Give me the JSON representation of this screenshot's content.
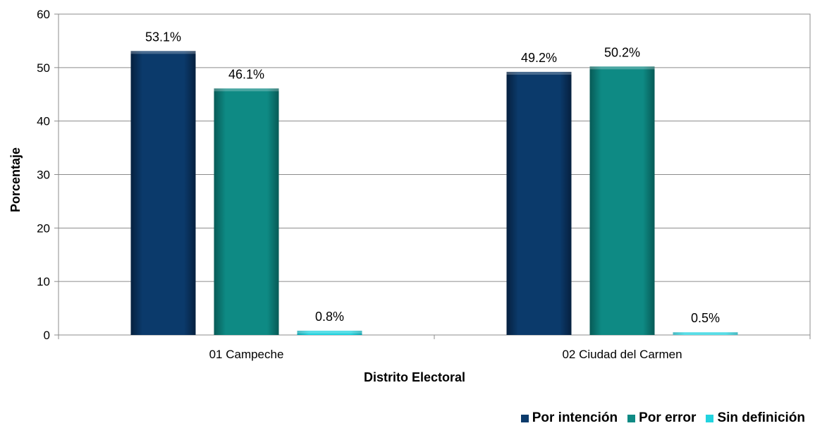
{
  "chart_data": {
    "type": "bar",
    "title": "",
    "xlabel": "Distrito Electoral",
    "ylabel": "Porcentaje",
    "ylim": [
      0,
      60
    ],
    "yticks": [
      "0",
      "10",
      "20",
      "30",
      "40",
      "50",
      "60"
    ],
    "grid": true,
    "legend_position": "bottom-right",
    "categories": [
      "01 Campeche",
      "02 Ciudad del Carmen"
    ],
    "series": [
      {
        "name": "Por intención",
        "color": "#0b3a6b",
        "values": [
          53.1,
          49.2
        ],
        "labels": [
          "53.1%",
          "49.2%"
        ]
      },
      {
        "name": "Por error",
        "color": "#0e8a84",
        "values": [
          46.1,
          50.2
        ],
        "labels": [
          "46.1%",
          "50.2%"
        ]
      },
      {
        "name": "Sin definición",
        "color": "#22d3df",
        "values": [
          0.8,
          0.5
        ],
        "labels": [
          "0.8%",
          "0.5%"
        ]
      }
    ]
  }
}
